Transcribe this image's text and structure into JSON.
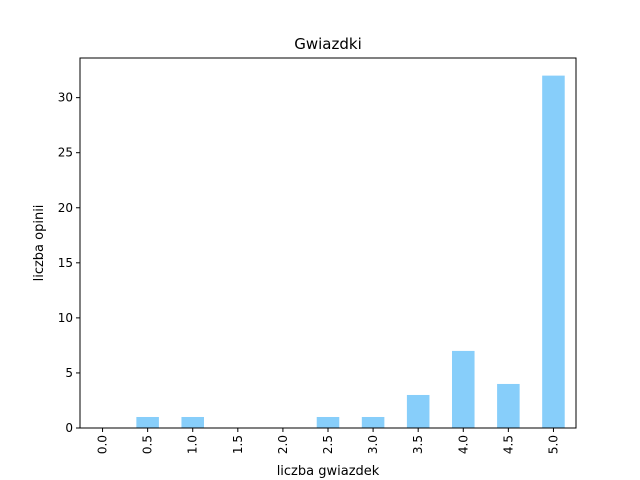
{
  "chart_data": {
    "type": "bar",
    "title": "Gwiazdki",
    "xlabel": "liczba gwiazdek",
    "ylabel": "liczba opinii",
    "categories": [
      "0.0",
      "0.5",
      "1.0",
      "1.5",
      "2.0",
      "2.5",
      "3.0",
      "3.5",
      "4.0",
      "4.5",
      "5.0"
    ],
    "values": [
      0,
      1,
      1,
      0,
      0,
      1,
      1,
      3,
      7,
      4,
      32
    ],
    "ylim": [
      0,
      33.6
    ],
    "yticks": [
      0,
      5,
      10,
      15,
      20,
      25,
      30
    ],
    "bar_color": "#87cefa",
    "grid": false,
    "legend": "none"
  }
}
